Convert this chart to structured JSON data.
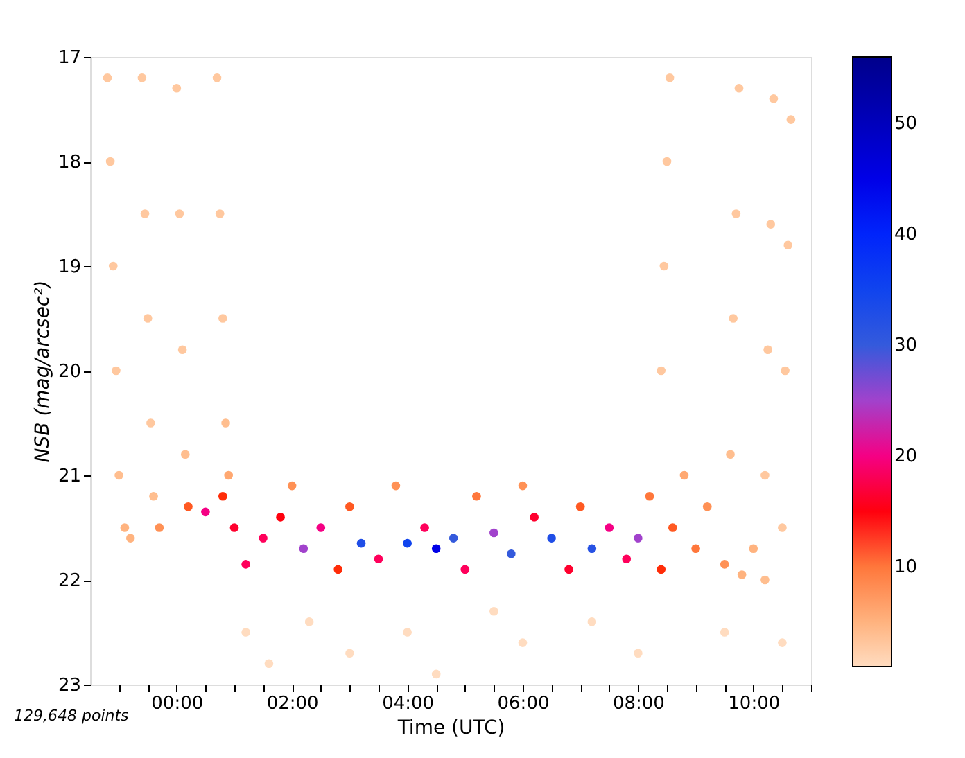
{
  "chart_data": {
    "type": "scatter",
    "xlabel": "Time (UTC)",
    "ylabel": "NSB (mag/arcsec²)",
    "annotations": [
      "129,648 points"
    ],
    "marker": "circle",
    "grid": false,
    "xlim": [
      -1.5,
      11
    ],
    "ylim": [
      23,
      17
    ],
    "xticks": [
      {
        "value": -1,
        "label": null
      },
      {
        "value": -0.5,
        "label": null
      },
      {
        "value": 0,
        "label": "00:00"
      },
      {
        "value": 0.5,
        "label": null
      },
      {
        "value": 1,
        "label": null
      },
      {
        "value": 1.5,
        "label": null
      },
      {
        "value": 2,
        "label": "02:00"
      },
      {
        "value": 2.5,
        "label": null
      },
      {
        "value": 3,
        "label": null
      },
      {
        "value": 3.5,
        "label": null
      },
      {
        "value": 4,
        "label": "04:00"
      },
      {
        "value": 4.5,
        "label": null
      },
      {
        "value": 5,
        "label": null
      },
      {
        "value": 5.5,
        "label": null
      },
      {
        "value": 6,
        "label": "06:00"
      },
      {
        "value": 6.5,
        "label": null
      },
      {
        "value": 7,
        "label": null
      },
      {
        "value": 7.5,
        "label": null
      },
      {
        "value": 8,
        "label": "08:00"
      },
      {
        "value": 8.5,
        "label": null
      },
      {
        "value": 9,
        "label": null
      },
      {
        "value": 9.5,
        "label": null
      },
      {
        "value": 10,
        "label": "10:00"
      },
      {
        "value": 10.5,
        "label": null
      },
      {
        "value": 11,
        "label": null
      }
    ],
    "yticks": [
      17,
      18,
      19,
      20,
      21,
      22,
      23
    ],
    "clim": [
      1,
      56
    ],
    "cticks": [
      10,
      20,
      30,
      40,
      50
    ],
    "x": [
      -1.2,
      -1.15,
      -1.1,
      -1.05,
      -1.0,
      -0.9,
      -0.6,
      -0.55,
      -0.5,
      -0.45,
      -0.4,
      0.0,
      0.05,
      0.1,
      0.15,
      0.7,
      0.75,
      0.8,
      0.85,
      0.9,
      -0.8,
      -0.3,
      0.2,
      0.5,
      0.8,
      1.0,
      1.2,
      1.5,
      1.8,
      2.0,
      2.2,
      2.5,
      2.8,
      3.0,
      3.2,
      3.5,
      3.8,
      4.0,
      4.3,
      4.5,
      4.8,
      5.0,
      5.2,
      5.5,
      5.8,
      6.0,
      6.2,
      6.5,
      6.8,
      7.0,
      7.2,
      7.5,
      7.8,
      8.0,
      8.2,
      8.4,
      8.6,
      8.8,
      9.0,
      9.2,
      9.5,
      9.8,
      10.0,
      10.2,
      8.4,
      8.45,
      8.5,
      8.55,
      9.6,
      9.65,
      9.7,
      9.75,
      10.2,
      10.25,
      10.3,
      10.35,
      10.5,
      10.55,
      10.6,
      10.65,
      1.2,
      1.6,
      2.3,
      3.0,
      4.0,
      4.5,
      5.5,
      6.0,
      7.2,
      8.0,
      9.5,
      10.5
    ],
    "values": [
      17.2,
      18,
      19,
      20,
      21,
      21.5,
      17.2,
      18.5,
      19.5,
      20.5,
      21.2,
      17.3,
      18.5,
      19.8,
      20.8,
      17.2,
      18.5,
      19.5,
      20.5,
      21.0,
      21.6,
      21.5,
      21.3,
      21.35,
      21.2,
      21.5,
      21.85,
      21.6,
      21.4,
      21.1,
      21.7,
      21.5,
      21.9,
      21.3,
      21.65,
      21.8,
      21.1,
      21.65,
      21.5,
      21.7,
      21.6,
      21.9,
      21.2,
      21.55,
      21.75,
      21.1,
      21.4,
      21.6,
      21.9,
      21.3,
      21.7,
      21.5,
      21.8,
      21.6,
      21.2,
      21.9,
      21.5,
      21.0,
      21.7,
      21.3,
      21.85,
      21.95,
      21.7,
      22.0,
      20.0,
      19,
      18,
      17.2,
      20.8,
      19.5,
      18.5,
      17.3,
      21.0,
      19.8,
      18.6,
      17.4,
      21.5,
      20,
      18.8,
      17.6,
      22.5,
      22.8,
      22.4,
      22.7,
      22.5,
      22.9,
      22.3,
      22.6,
      22.4,
      22.7,
      22.5,
      22.6
    ],
    "cvalues": [
      3,
      3,
      3,
      3,
      4,
      5,
      3,
      3,
      3,
      3,
      4,
      3,
      3,
      3,
      4,
      3,
      3,
      3,
      4,
      6,
      5,
      8,
      12,
      20,
      14,
      16,
      18,
      18,
      15,
      8,
      25,
      20,
      14,
      12,
      33,
      18,
      8,
      35,
      18,
      45,
      30,
      18,
      10,
      25,
      30,
      8,
      16,
      33,
      16,
      12,
      32,
      20,
      18,
      25,
      10,
      14,
      12,
      6,
      10,
      8,
      8,
      5,
      5,
      4,
      3,
      3,
      3,
      3,
      4,
      3,
      3,
      3,
      3,
      3,
      3,
      3,
      3,
      3,
      3,
      3,
      1,
      1,
      1,
      1,
      1,
      1,
      1,
      1,
      1,
      1,
      1,
      1
    ]
  }
}
